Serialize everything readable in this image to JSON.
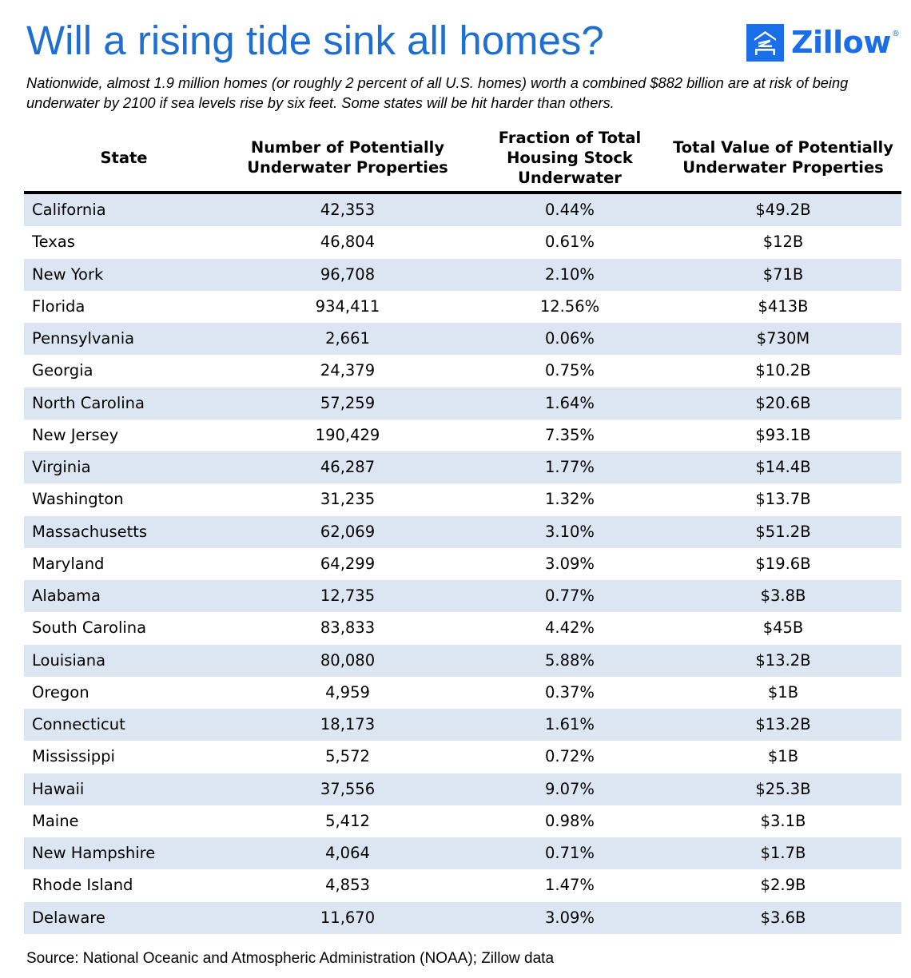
{
  "title": "Will a rising tide sink all homes?",
  "logo": {
    "wordmark": "Zillow",
    "registered": "®",
    "icon": "zillow-house-icon",
    "color": "#1a6ee8"
  },
  "subtitle": "Nationwide, almost 1.9 million homes (or roughly 2 percent of all U.S. homes) worth a combined $882 billion are at risk of being underwater by 2100 if sea levels rise by six feet. Some states will be hit harder than others.",
  "colors": {
    "title": "#1f6fd1",
    "stripe": "#dce6f2",
    "rule": "#000000"
  },
  "chart_data": {
    "type": "table",
    "title": "Will a rising tide sink all homes?",
    "columns": [
      "State",
      "Number of Potentially\nUnderwater Properties",
      "Fraction of Total\nHousing Stock\nUnderwater",
      "Total Value of Potentially\nUnderwater Properties"
    ],
    "rows": [
      [
        "California",
        "42,353",
        "0.44%",
        "$49.2B"
      ],
      [
        "Texas",
        "46,804",
        "0.61%",
        "$12B"
      ],
      [
        "New York",
        "96,708",
        "2.10%",
        "$71B"
      ],
      [
        "Florida",
        "934,411",
        "12.56%",
        "$413B"
      ],
      [
        "Pennsylvania",
        "2,661",
        "0.06%",
        "$730M"
      ],
      [
        "Georgia",
        "24,379",
        "0.75%",
        "$10.2B"
      ],
      [
        "North Carolina",
        "57,259",
        "1.64%",
        "$20.6B"
      ],
      [
        "New Jersey",
        "190,429",
        "7.35%",
        "$93.1B"
      ],
      [
        "Virginia",
        "46,287",
        "1.77%",
        "$14.4B"
      ],
      [
        "Washington",
        "31,235",
        "1.32%",
        "$13.7B"
      ],
      [
        "Massachusetts",
        "62,069",
        "3.10%",
        "$51.2B"
      ],
      [
        "Maryland",
        "64,299",
        "3.09%",
        "$19.6B"
      ],
      [
        "Alabama",
        "12,735",
        "0.77%",
        "$3.8B"
      ],
      [
        "South Carolina",
        "83,833",
        "4.42%",
        "$45B"
      ],
      [
        "Louisiana",
        "80,080",
        "5.88%",
        "$13.2B"
      ],
      [
        "Oregon",
        "4,959",
        "0.37%",
        "$1B"
      ],
      [
        "Connecticut",
        "18,173",
        "1.61%",
        "$13.2B"
      ],
      [
        "Mississippi",
        "5,572",
        "0.72%",
        "$1B"
      ],
      [
        "Hawaii",
        "37,556",
        "9.07%",
        "$25.3B"
      ],
      [
        "Maine",
        "5,412",
        "0.98%",
        "$3.1B"
      ],
      [
        "New Hampshire",
        "4,064",
        "0.71%",
        "$1.7B"
      ],
      [
        "Rhode Island",
        "4,853",
        "1.47%",
        "$2.9B"
      ],
      [
        "Delaware",
        "11,670",
        "3.09%",
        "$3.6B"
      ]
    ]
  },
  "source": "Source: National Oceanic and Atmospheric Administration (NOAA); Zillow data"
}
